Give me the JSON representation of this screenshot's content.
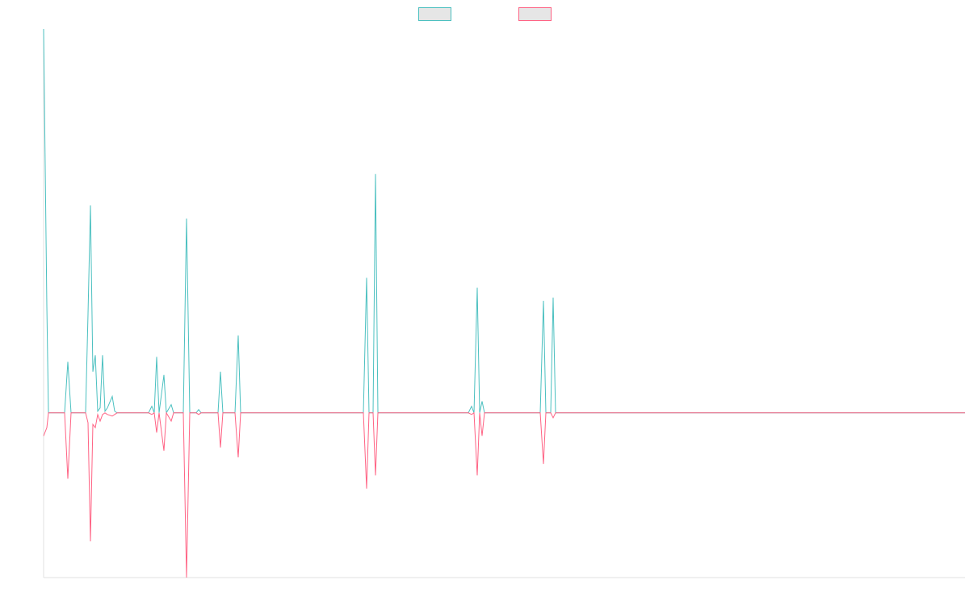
{
  "chart_data": {
    "type": "line",
    "x": [
      0,
      4,
      6,
      26,
      30,
      34,
      52,
      55,
      58,
      61,
      64,
      67,
      70,
      73,
      76,
      79,
      85,
      88,
      91,
      130,
      134,
      137,
      140,
      143,
      149,
      152,
      158,
      161,
      173,
      177,
      181,
      189,
      192,
      195,
      216,
      219,
      222,
      237,
      241,
      244,
      396,
      400,
      403,
      408,
      411,
      414,
      526,
      530,
      533,
      537,
      540,
      543,
      546,
      615,
      619,
      622,
      628,
      631,
      634,
      1141
    ],
    "series": [
      {
        "color": "#4bc0c0",
        "values": [
          233,
          65,
          0,
          0,
          31,
          0,
          0,
          60,
          126,
          25,
          35,
          1,
          3,
          35,
          1,
          3,
          10,
          1,
          0,
          0,
          4,
          0,
          34,
          0,
          23,
          0,
          5,
          0,
          0,
          118,
          0,
          0,
          2,
          0,
          0,
          25,
          0,
          0,
          47,
          0,
          0,
          82,
          0,
          0,
          145,
          0,
          0,
          4,
          0,
          76,
          0,
          7,
          0,
          0,
          68,
          0,
          0,
          70,
          0,
          0
        ]
      },
      {
        "color": "#ff6384",
        "values": [
          -14,
          -9,
          0,
          0,
          -40,
          0,
          0,
          -6,
          -78,
          -7,
          -9,
          -1,
          -5,
          -1,
          0,
          -1,
          -2,
          -1,
          0,
          0,
          -1,
          0,
          -12,
          0,
          -23,
          0,
          -5,
          0,
          0,
          -100,
          0,
          0,
          -1,
          0,
          0,
          -21,
          0,
          0,
          -27,
          0,
          0,
          -46,
          0,
          0,
          -38,
          0,
          0,
          -1,
          0,
          -38,
          0,
          -14,
          0,
          0,
          -31,
          0,
          0,
          -3,
          0,
          0
        ]
      }
    ],
    "xlim": [
      0,
      1141
    ],
    "ylim": [
      -100,
      233
    ],
    "legend": "top"
  }
}
